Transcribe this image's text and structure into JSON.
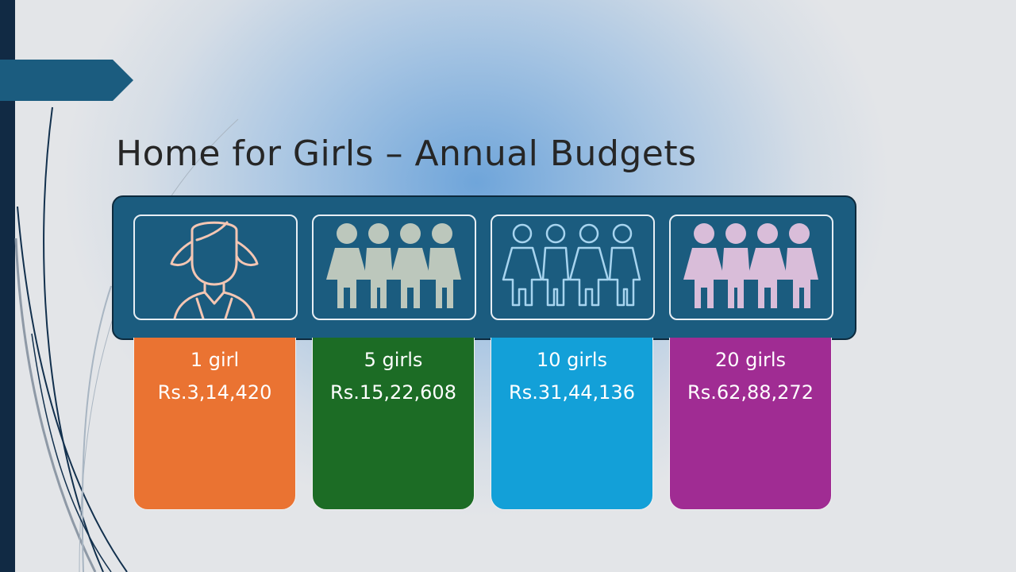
{
  "slide": {
    "title": "Home for Girls – Annual Budgets",
    "accent_color": "#1b5c7f"
  },
  "budgets": [
    {
      "label": "1 girl",
      "amount": "Rs.3,14,420",
      "color": "#ea7332",
      "icon": "girl-outline-icon",
      "icon_color": "#f4c6b3"
    },
    {
      "label": "5 girls",
      "amount": "Rs.15,22,608",
      "color": "#1c6c25",
      "icon": "group-of-four-icon",
      "icon_color": "#bcc7bc"
    },
    {
      "label": "10 girls",
      "amount": "Rs.31,44,136",
      "color": "#13a0d8",
      "icon": "group-of-four-outline-icon",
      "icon_color": "#a7d4ef"
    },
    {
      "label": "20 girls",
      "amount": "Rs.62,88,272",
      "color": "#a02c93",
      "icon": "group-of-four-icon",
      "icon_color": "#d9bdd9"
    }
  ]
}
